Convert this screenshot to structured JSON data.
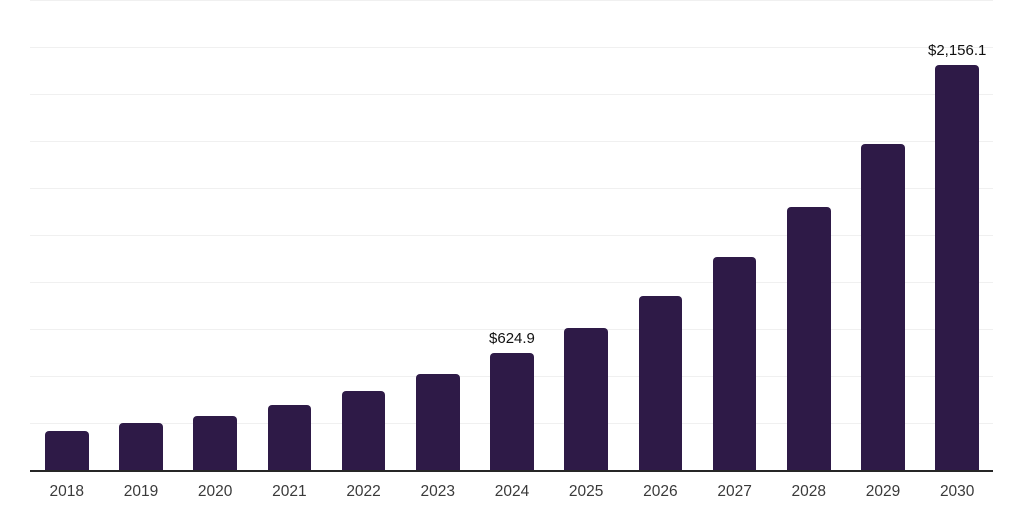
{
  "chart_data": {
    "type": "bar",
    "title": "",
    "xlabel": "",
    "ylabel": "",
    "categories": [
      "2018",
      "2019",
      "2020",
      "2021",
      "2022",
      "2023",
      "2024",
      "2025",
      "2026",
      "2027",
      "2028",
      "2029",
      "2030"
    ],
    "values": [
      206,
      250,
      289,
      345,
      420,
      510,
      624.9,
      756,
      926,
      1134,
      1397,
      1734,
      2156.1
    ],
    "point_labels": [
      "",
      "",
      "",
      "",
      "",
      "",
      "$624.9",
      "",
      "",
      "",
      "",
      "",
      "$2,156.1"
    ],
    "ylim": [
      0,
      2500
    ],
    "gridline_step": 250,
    "grid": "horizontal-only",
    "legend": "none",
    "colors": {
      "bar": "#2e1a47",
      "axis_line": "#262626",
      "gridline": "#f0f0f0",
      "tick_label": "#3a3a3a",
      "data_label": "#111111"
    }
  }
}
